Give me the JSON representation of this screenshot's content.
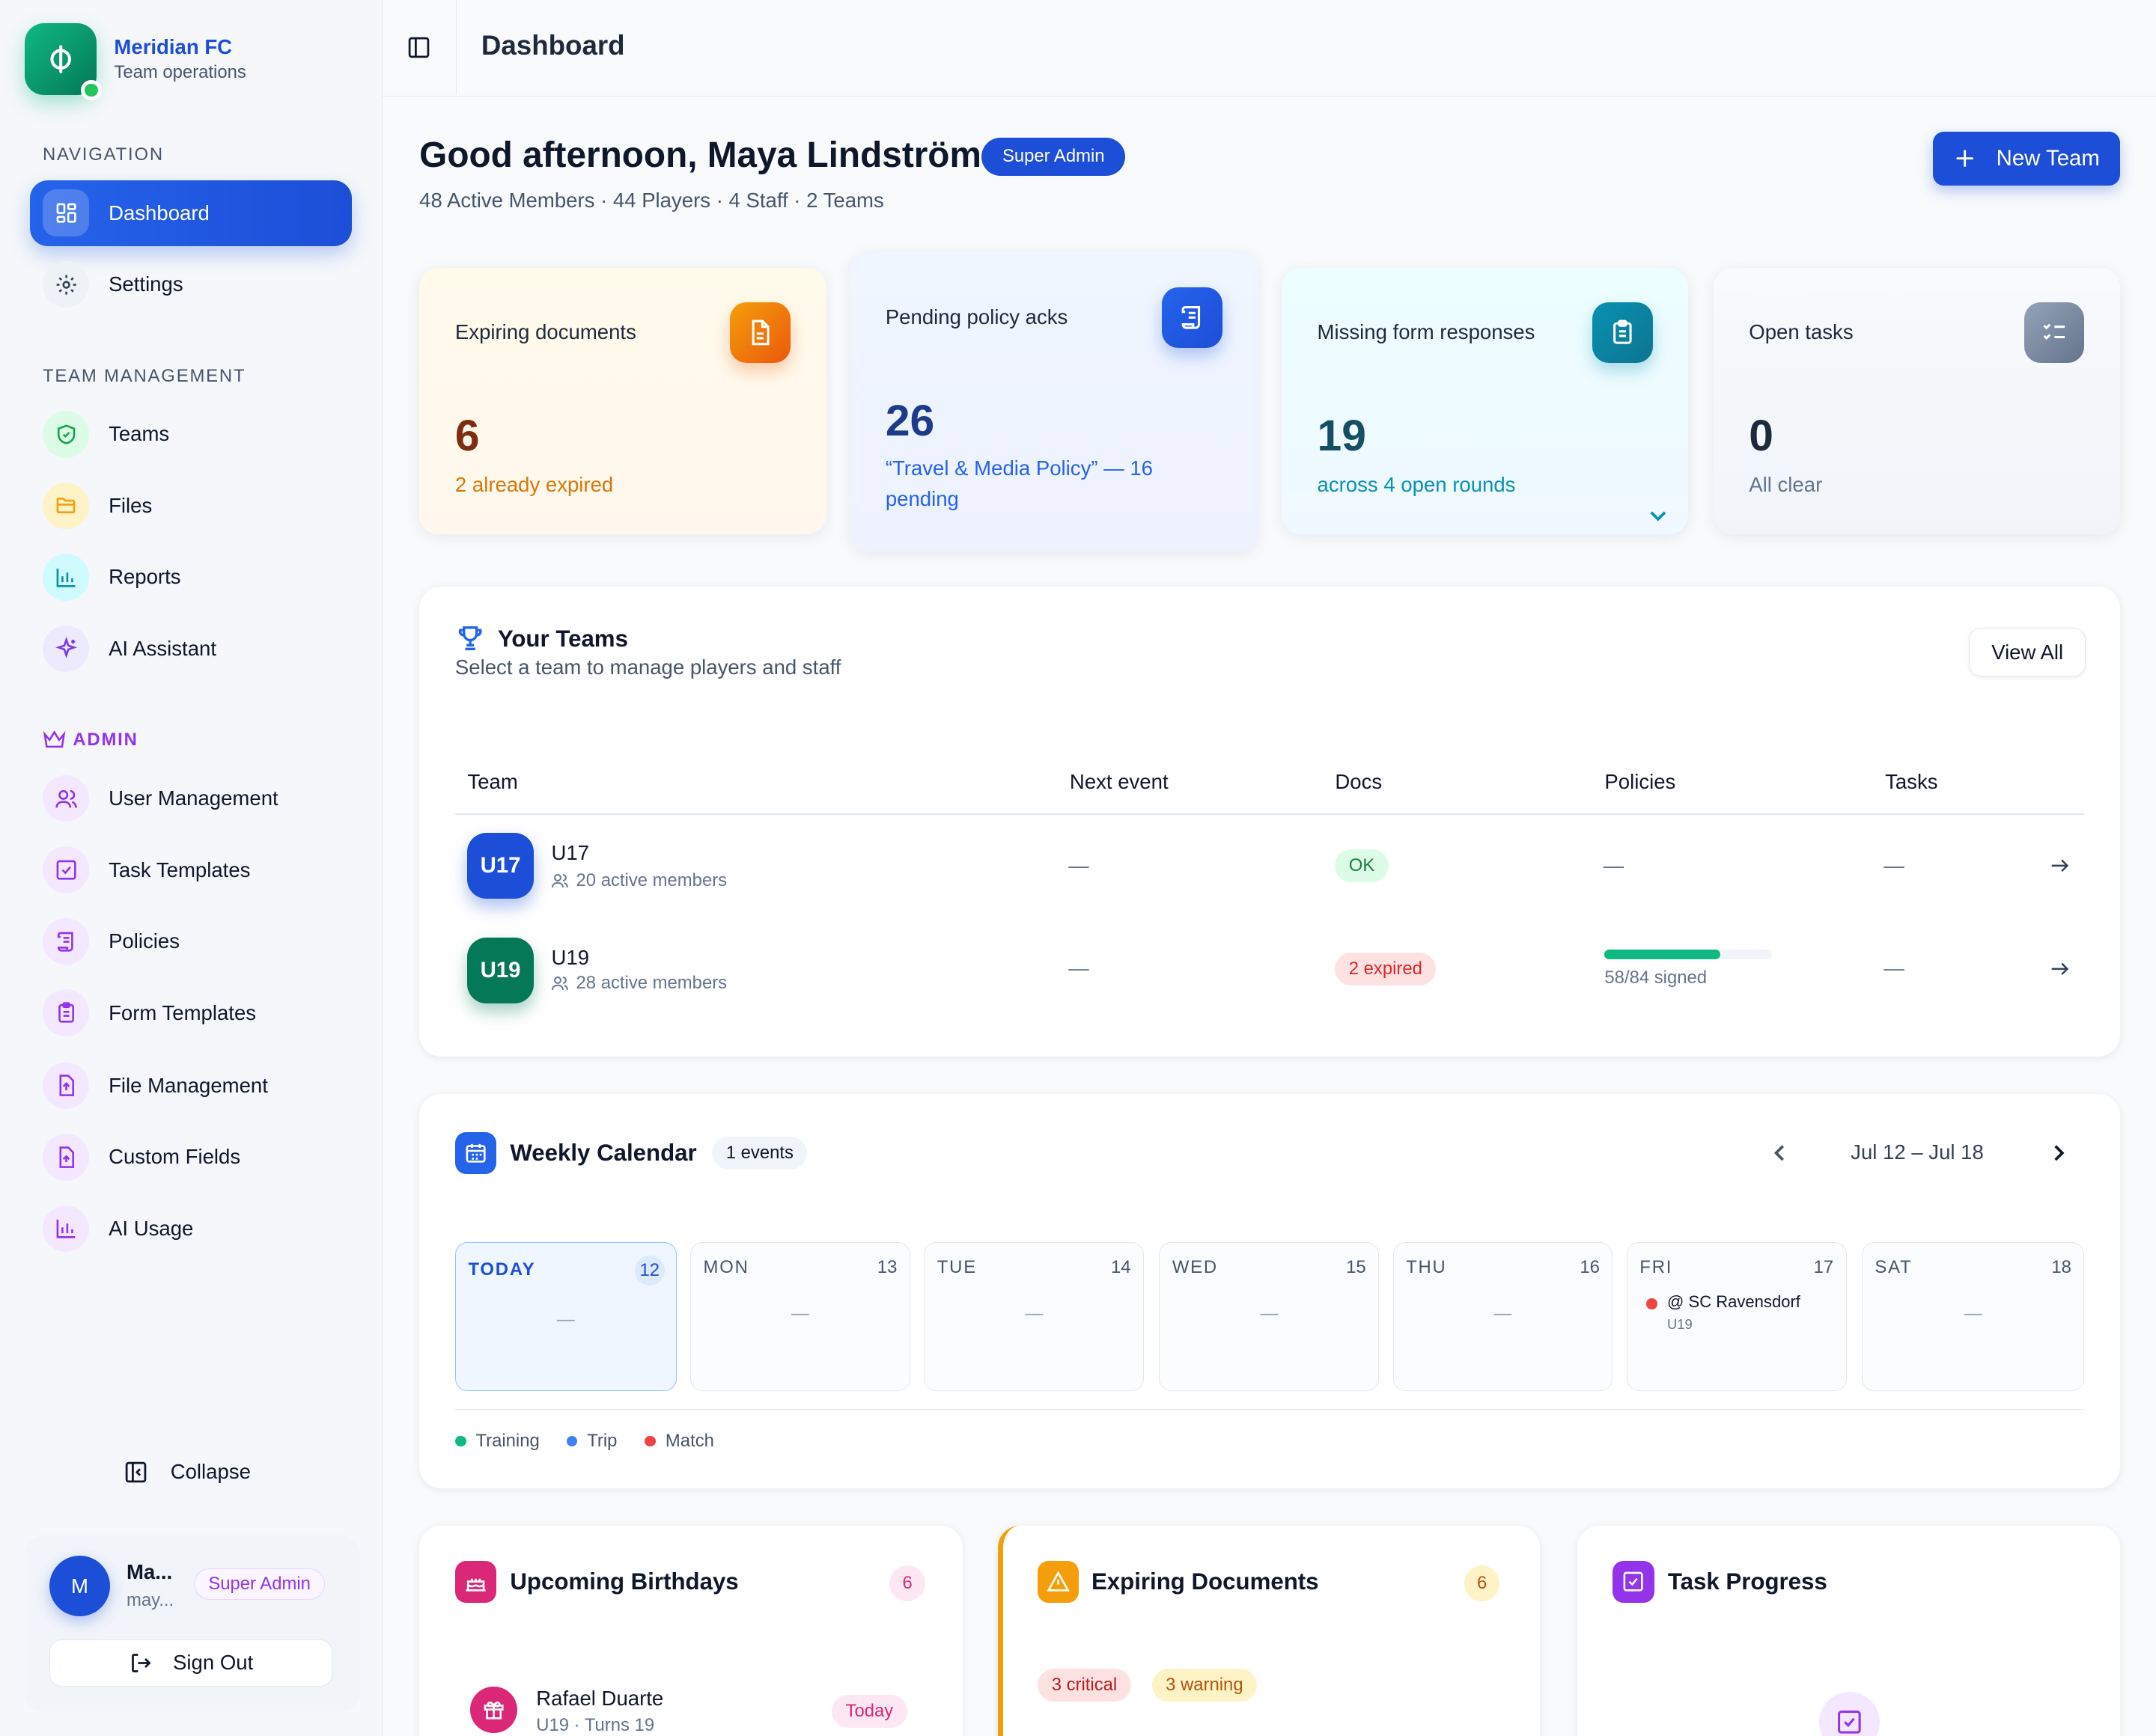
{
  "brand": {
    "name": "Meridian FC",
    "subtitle": "Team operations"
  },
  "sidebar": {
    "nav_section": "NAVIGATION",
    "nav": [
      {
        "label": "Dashboard",
        "icon": "dashboard-grid-icon",
        "active": true
      },
      {
        "label": "Settings",
        "icon": "gear-icon"
      }
    ],
    "team_section": "TEAM MANAGEMENT",
    "team_items": [
      {
        "label": "Teams",
        "icon": "shield-check-icon",
        "color": "#16a34a"
      },
      {
        "label": "Files",
        "icon": "folder-icon",
        "color": "#f59e0b"
      },
      {
        "label": "Reports",
        "icon": "bar-chart-icon",
        "color": "#0891b2"
      },
      {
        "label": "AI Assistant",
        "icon": "sparkles-icon",
        "color": "#7c3aed"
      }
    ],
    "admin_section": "ADMIN",
    "admin_items": [
      {
        "label": "User Management",
        "icon": "users-icon"
      },
      {
        "label": "Task Templates",
        "icon": "checkbox-icon"
      },
      {
        "label": "Policies",
        "icon": "scroll-icon"
      },
      {
        "label": "Form Templates",
        "icon": "clipboard-icon"
      },
      {
        "label": "File Management",
        "icon": "file-upload-icon"
      },
      {
        "label": "Custom Fields",
        "icon": "file-plus-icon"
      },
      {
        "label": "AI Usage",
        "icon": "bar-chart-icon"
      }
    ],
    "collapse_label": "Collapse",
    "user": {
      "initial": "M",
      "name": "Ma...",
      "email": "may...",
      "role": "Super Admin",
      "signout": "Sign Out"
    }
  },
  "topbar": {
    "title": "Dashboard"
  },
  "greeting": {
    "title": "Good afternoon, Maya Lindström",
    "badge": "Super Admin",
    "subtitle": "48 Active Members · 44 Players · 4 Staff · 2 Teams",
    "new_team": "New Team"
  },
  "stats": [
    {
      "label": "Expiring documents",
      "value": "6",
      "sub": "2 already expired",
      "icon": "document-icon"
    },
    {
      "label": "Pending policy acks",
      "value": "26",
      "sub": "“Travel & Media Policy” — 16 pending",
      "icon": "scroll-icon"
    },
    {
      "label": "Missing form responses",
      "value": "19",
      "sub": "across 4 open rounds",
      "icon": "clipboard-icon"
    },
    {
      "label": "Open tasks",
      "value": "0",
      "sub": "All clear",
      "icon": "checklist-icon"
    }
  ],
  "teams": {
    "title": "Your Teams",
    "subtitle": "Select a team to manage players and staff",
    "view_all": "View All",
    "columns": [
      "Team",
      "Next event",
      "Docs",
      "Policies",
      "Tasks"
    ],
    "rows": [
      {
        "code": "U17",
        "name": "U17",
        "members": "20 active members",
        "next_event": "—",
        "docs": "OK",
        "policies": "—",
        "tasks": "—",
        "color": "#1d4ed8"
      },
      {
        "code": "U19",
        "name": "U19",
        "members": "28 active members",
        "next_event": "—",
        "docs": "2 expired",
        "policies": "58/84 signed",
        "policies_progress": 0.69,
        "tasks": "—",
        "color": "#047857"
      }
    ]
  },
  "calendar": {
    "title": "Weekly Calendar",
    "count": "1 events",
    "range": "Jul 12 – Jul 18",
    "days": [
      {
        "name": "TODAY",
        "num": "12",
        "empty": "—"
      },
      {
        "name": "MON",
        "num": "13",
        "empty": "—"
      },
      {
        "name": "TUE",
        "num": "14",
        "empty": "—"
      },
      {
        "name": "WED",
        "num": "15",
        "empty": "—"
      },
      {
        "name": "THU",
        "num": "16",
        "empty": "—"
      },
      {
        "name": "FRI",
        "num": "17",
        "event": "@ SC Ravensdorf",
        "event_team": "U19"
      },
      {
        "name": "SAT",
        "num": "18",
        "empty": "—"
      }
    ],
    "legend": [
      {
        "label": "Training",
        "color": "#10b981"
      },
      {
        "label": "Trip",
        "color": "#3b82f6"
      },
      {
        "label": "Match",
        "color": "#ef4444"
      }
    ]
  },
  "birthdays": {
    "title": "Upcoming Birthdays",
    "count": "6",
    "item": {
      "name": "Rafael Duarte",
      "sub": "U19 · Turns 19",
      "tag": "Today"
    }
  },
  "expiring": {
    "title": "Expiring Documents",
    "count": "6",
    "critical": "3 critical",
    "warning": "3 warning"
  },
  "tasks": {
    "title": "Task Progress"
  }
}
